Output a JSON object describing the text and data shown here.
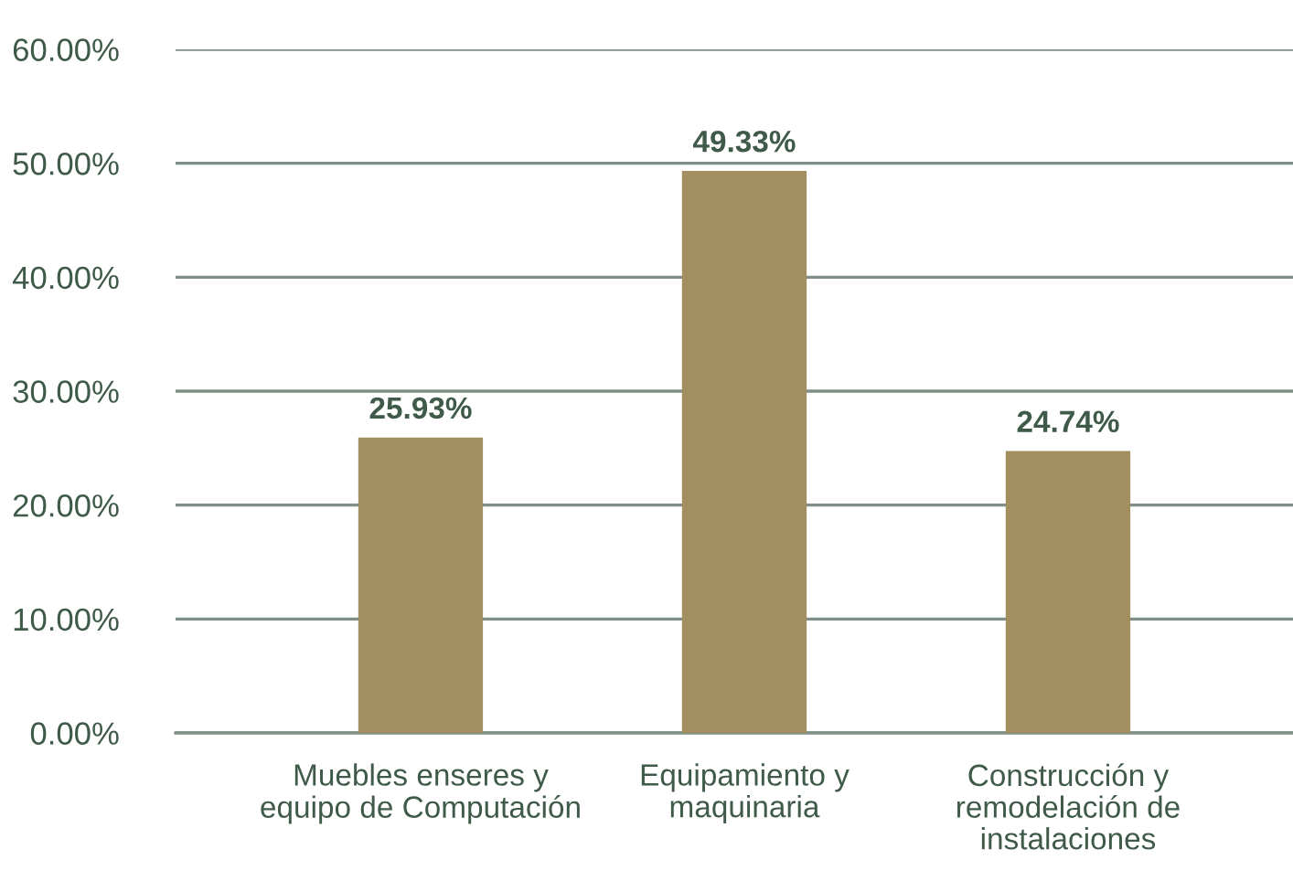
{
  "chart_data": {
    "type": "bar",
    "categories": [
      "Muebles enseres y\nequipo de Computación",
      "Equipamiento y\nmaquinaria",
      "Construcción y\nremodelación de\ninstalaciones"
    ],
    "values": [
      25.93,
      49.33,
      24.74
    ],
    "color": "#a38e5f",
    "value_labels": [
      "25.93%",
      "49.33%",
      "24.74%"
    ],
    "ylim": [
      0,
      60
    ],
    "yticks": [
      {
        "value": 0,
        "label": "0.00%"
      },
      {
        "value": 10,
        "label": "10.00%"
      },
      {
        "value": 20,
        "label": "20.00%"
      },
      {
        "value": 30,
        "label": "30.00%"
      },
      {
        "value": 40,
        "label": "40.00%"
      },
      {
        "value": 50,
        "label": "50.00%"
      },
      {
        "value": 60,
        "label": "60.00%"
      }
    ],
    "grid": "y",
    "legend": false
  }
}
